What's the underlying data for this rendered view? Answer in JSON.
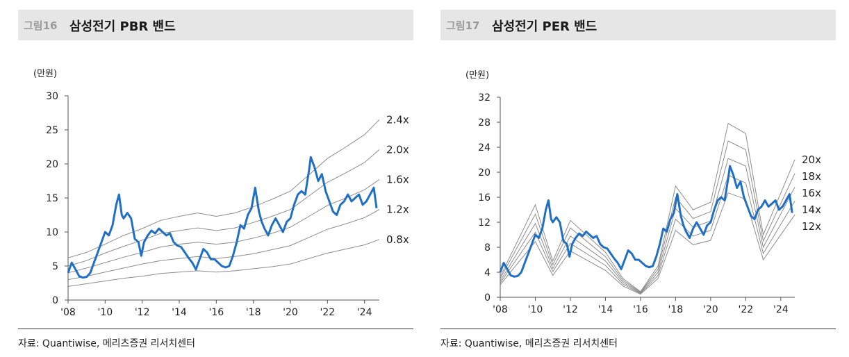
{
  "colors": {
    "accent": "#1f6fc5",
    "band": "#8c8c8c",
    "axis": "#555555",
    "title_bg": "#e6e6e6"
  },
  "figures": [
    {
      "number": "그림16",
      "title": "삼성전기 PBR 밴드",
      "source": "자료: Quantiwise, 메리츠증권 리서치센터"
    },
    {
      "number": "그림17",
      "title": "삼성전기 PER 밴드",
      "source": "자료: Quantiwise, 메리츠증권 리서치센터"
    }
  ],
  "chart_data": [
    {
      "type": "line",
      "title": "삼성전기 PBR 밴드",
      "unit_label": "(만원)",
      "ylim": [
        0,
        30
      ],
      "yticks": [
        0,
        5,
        10,
        15,
        20,
        25,
        30
      ],
      "xlim": [
        2008,
        2024.8
      ],
      "xticks": [
        2008,
        2010,
        2012,
        2014,
        2016,
        2018,
        2020,
        2022,
        2024
      ],
      "xtick_labels": [
        "'08",
        "'10",
        "'12",
        "'14",
        "'16",
        "'18",
        "'20",
        "'22",
        "'24"
      ],
      "grid": false,
      "bands": [
        {
          "name": "2.4x",
          "x": [
            2008,
            2009,
            2010,
            2011,
            2012,
            2013,
            2014,
            2015,
            2016,
            2017,
            2018,
            2019,
            2020,
            2021,
            2022,
            2023,
            2024,
            2024.8
          ],
          "values": [
            6.2,
            7.0,
            8.2,
            9.5,
            10.5,
            11.7,
            12.3,
            12.8,
            12.3,
            12.8,
            13.7,
            14.8,
            16.0,
            18.4,
            20.8,
            22.5,
            24.3,
            26.5
          ]
        },
        {
          "name": "2.0x",
          "x": [
            2008,
            2009,
            2010,
            2011,
            2012,
            2013,
            2014,
            2015,
            2016,
            2017,
            2018,
            2019,
            2020,
            2021,
            2022,
            2023,
            2024,
            2024.8
          ],
          "values": [
            5.0,
            5.8,
            6.9,
            7.9,
            8.8,
            9.8,
            10.2,
            10.6,
            10.2,
            10.6,
            11.4,
            12.3,
            13.3,
            15.3,
            17.3,
            18.7,
            20.2,
            22.1
          ]
        },
        {
          "name": "1.6x",
          "x": [
            2008,
            2009,
            2010,
            2011,
            2012,
            2013,
            2014,
            2015,
            2016,
            2017,
            2018,
            2019,
            2020,
            2021,
            2022,
            2023,
            2024,
            2024.8
          ],
          "values": [
            4.0,
            4.7,
            5.5,
            6.3,
            7.0,
            7.8,
            8.2,
            8.5,
            8.2,
            8.5,
            9.1,
            9.8,
            10.7,
            12.3,
            13.9,
            15.0,
            16.2,
            17.7
          ]
        },
        {
          "name": "1.2x",
          "x": [
            2008,
            2009,
            2010,
            2011,
            2012,
            2013,
            2014,
            2015,
            2016,
            2017,
            2018,
            2019,
            2020,
            2021,
            2022,
            2023,
            2024,
            2024.8
          ],
          "values": [
            3.0,
            3.5,
            4.1,
            4.7,
            5.3,
            5.8,
            6.1,
            6.4,
            6.1,
            6.4,
            6.8,
            7.4,
            8.0,
            9.2,
            10.4,
            11.2,
            12.1,
            13.3
          ]
        },
        {
          "name": "0.8x",
          "x": [
            2008,
            2009,
            2010,
            2011,
            2012,
            2013,
            2014,
            2015,
            2016,
            2017,
            2018,
            2019,
            2020,
            2021,
            2022,
            2023,
            2024,
            2024.8
          ],
          "values": [
            2.0,
            2.4,
            2.8,
            3.2,
            3.5,
            3.9,
            4.1,
            4.3,
            4.1,
            4.3,
            4.6,
            4.9,
            5.3,
            6.1,
            6.9,
            7.5,
            8.1,
            8.9
          ]
        }
      ],
      "price": {
        "x": [
          2008.0,
          2008.2,
          2008.4,
          2008.6,
          2008.8,
          2009.0,
          2009.2,
          2009.4,
          2009.6,
          2009.8,
          2010.0,
          2010.2,
          2010.4,
          2010.6,
          2010.75,
          2010.9,
          2011.0,
          2011.2,
          2011.4,
          2011.6,
          2011.8,
          2011.95,
          2012.1,
          2012.3,
          2012.5,
          2012.7,
          2012.9,
          2013.1,
          2013.3,
          2013.5,
          2013.7,
          2013.9,
          2014.1,
          2014.3,
          2014.5,
          2014.7,
          2014.9,
          2015.1,
          2015.3,
          2015.5,
          2015.7,
          2015.9,
          2016.1,
          2016.3,
          2016.5,
          2016.7,
          2016.9,
          2017.1,
          2017.3,
          2017.5,
          2017.7,
          2017.9,
          2018.1,
          2018.3,
          2018.45,
          2018.6,
          2018.8,
          2019.0,
          2019.2,
          2019.4,
          2019.6,
          2019.8,
          2020.0,
          2020.2,
          2020.4,
          2020.6,
          2020.8,
          2021.0,
          2021.1,
          2021.3,
          2021.5,
          2021.7,
          2021.9,
          2022.1,
          2022.3,
          2022.5,
          2022.7,
          2022.9,
          2023.1,
          2023.3,
          2023.5,
          2023.7,
          2023.9,
          2024.1,
          2024.3,
          2024.5,
          2024.65
        ],
        "values": [
          4.0,
          5.5,
          4.5,
          3.5,
          3.3,
          3.4,
          4.0,
          5.5,
          7.0,
          8.5,
          10.0,
          9.5,
          11.0,
          14.0,
          15.5,
          12.5,
          12.0,
          12.8,
          12.0,
          9.0,
          8.5,
          6.5,
          8.5,
          9.5,
          10.2,
          9.8,
          10.5,
          10.0,
          9.5,
          9.8,
          8.5,
          8.0,
          7.8,
          7.0,
          6.2,
          5.5,
          4.5,
          6.0,
          7.5,
          7.0,
          6.0,
          6.0,
          5.5,
          5.0,
          4.8,
          5.0,
          6.5,
          8.5,
          11.0,
          10.5,
          12.5,
          13.5,
          16.5,
          13.0,
          11.5,
          10.5,
          9.5,
          11.0,
          12.0,
          11.0,
          10.0,
          11.5,
          12.0,
          14.0,
          15.5,
          16.0,
          15.5,
          19.0,
          21.0,
          19.5,
          17.5,
          18.5,
          16.0,
          14.5,
          13.0,
          12.5,
          14.0,
          14.5,
          15.5,
          14.5,
          15.0,
          15.5,
          14.0,
          14.5,
          15.5,
          16.5,
          13.5
        ]
      }
    },
    {
      "type": "line",
      "title": "삼성전기 PER 밴드",
      "unit_label": "(만원)",
      "ylim": [
        0,
        32
      ],
      "yticks": [
        0,
        4,
        8,
        12,
        16,
        20,
        24,
        28,
        32
      ],
      "xlim": [
        2008,
        2024.8
      ],
      "xticks": [
        2008,
        2010,
        2012,
        2014,
        2016,
        2018,
        2020,
        2022,
        2024
      ],
      "xtick_labels": [
        "'08",
        "'10",
        "'12",
        "'14",
        "'16",
        "'18",
        "'20",
        "'22",
        "'24"
      ],
      "grid": false,
      "bands": [
        {
          "name": "20x",
          "x": [
            2008,
            2010,
            2011,
            2012,
            2014,
            2015,
            2016,
            2017,
            2018,
            2019,
            2020,
            2021,
            2022,
            2023,
            2024.8
          ],
          "values": [
            3.3,
            14.8,
            5.8,
            12.3,
            7.2,
            3.0,
            0.9,
            5.0,
            17.8,
            14.0,
            15.2,
            27.8,
            26.2,
            10.0,
            22.0
          ]
        },
        {
          "name": "18x",
          "x": [
            2008,
            2010,
            2011,
            2012,
            2014,
            2015,
            2016,
            2017,
            2018,
            2019,
            2020,
            2021,
            2022,
            2023,
            2024.8
          ],
          "values": [
            3.0,
            13.3,
            5.2,
            11.1,
            6.5,
            2.7,
            0.8,
            4.5,
            16.0,
            12.6,
            13.7,
            25.0,
            23.6,
            9.0,
            19.8
          ]
        },
        {
          "name": "16x",
          "x": [
            2008,
            2010,
            2011,
            2012,
            2014,
            2015,
            2016,
            2017,
            2018,
            2019,
            2020,
            2021,
            2022,
            2023,
            2024.8
          ],
          "values": [
            2.6,
            11.8,
            4.6,
            9.8,
            5.8,
            2.4,
            0.7,
            4.0,
            14.2,
            11.2,
            12.2,
            22.2,
            21.0,
            8.0,
            17.6
          ]
        },
        {
          "name": "14x",
          "x": [
            2008,
            2010,
            2011,
            2012,
            2014,
            2015,
            2016,
            2017,
            2018,
            2019,
            2020,
            2021,
            2022,
            2023,
            2024.8
          ],
          "values": [
            2.3,
            10.4,
            4.1,
            8.6,
            5.1,
            2.1,
            0.6,
            3.5,
            12.5,
            9.8,
            10.7,
            19.5,
            18.3,
            7.0,
            15.4
          ]
        },
        {
          "name": "12x",
          "x": [
            2008,
            2010,
            2011,
            2012,
            2014,
            2015,
            2016,
            2017,
            2018,
            2019,
            2020,
            2021,
            2022,
            2023,
            2024.8
          ],
          "values": [
            2.0,
            8.9,
            3.5,
            7.4,
            4.3,
            1.8,
            0.5,
            3.0,
            10.7,
            8.4,
            9.1,
            16.7,
            15.7,
            6.0,
            13.2
          ]
        }
      ],
      "price": {
        "x": [
          2008.0,
          2008.2,
          2008.4,
          2008.6,
          2008.8,
          2009.0,
          2009.2,
          2009.4,
          2009.6,
          2009.8,
          2010.0,
          2010.2,
          2010.4,
          2010.6,
          2010.75,
          2010.9,
          2011.0,
          2011.2,
          2011.4,
          2011.6,
          2011.8,
          2011.95,
          2012.1,
          2012.3,
          2012.5,
          2012.7,
          2012.9,
          2013.1,
          2013.3,
          2013.5,
          2013.7,
          2013.9,
          2014.1,
          2014.3,
          2014.5,
          2014.7,
          2014.9,
          2015.1,
          2015.3,
          2015.5,
          2015.7,
          2015.9,
          2016.1,
          2016.3,
          2016.5,
          2016.7,
          2016.9,
          2017.1,
          2017.3,
          2017.5,
          2017.7,
          2017.9,
          2018.1,
          2018.3,
          2018.45,
          2018.6,
          2018.8,
          2019.0,
          2019.2,
          2019.4,
          2019.6,
          2019.8,
          2020.0,
          2020.2,
          2020.4,
          2020.6,
          2020.8,
          2021.0,
          2021.1,
          2021.3,
          2021.5,
          2021.7,
          2021.9,
          2022.1,
          2022.3,
          2022.5,
          2022.7,
          2022.9,
          2023.1,
          2023.3,
          2023.5,
          2023.7,
          2023.9,
          2024.1,
          2024.3,
          2024.5,
          2024.65
        ],
        "values": [
          4.0,
          5.5,
          4.5,
          3.5,
          3.3,
          3.4,
          4.0,
          5.5,
          7.0,
          8.5,
          10.0,
          9.5,
          11.0,
          14.0,
          15.5,
          12.5,
          12.0,
          12.8,
          12.0,
          9.0,
          8.5,
          6.5,
          8.5,
          9.5,
          10.2,
          9.8,
          10.5,
          10.0,
          9.5,
          9.8,
          8.5,
          8.0,
          7.8,
          7.0,
          6.2,
          5.5,
          4.5,
          6.0,
          7.5,
          7.0,
          6.0,
          6.0,
          5.5,
          5.0,
          4.8,
          5.0,
          6.5,
          8.5,
          11.0,
          10.5,
          12.5,
          13.5,
          16.5,
          13.0,
          11.5,
          10.5,
          9.5,
          11.0,
          12.0,
          11.0,
          10.0,
          11.5,
          12.0,
          14.0,
          15.5,
          16.0,
          15.5,
          19.0,
          21.0,
          19.5,
          17.5,
          18.5,
          16.0,
          14.5,
          13.0,
          12.5,
          14.0,
          14.5,
          15.5,
          14.5,
          15.0,
          15.5,
          14.0,
          14.5,
          15.5,
          16.5,
          13.5
        ]
      }
    }
  ]
}
